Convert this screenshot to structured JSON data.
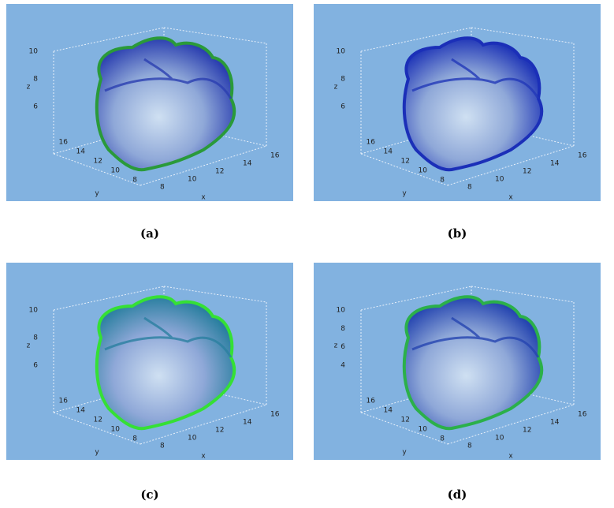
{
  "panels": [
    {
      "caption": "(a)",
      "z_ticks": [
        "6",
        "8",
        "10"
      ],
      "y_ticks": [
        "16",
        "14",
        "12",
        "10",
        "8"
      ],
      "x_ticks": [
        "8",
        "10",
        "12",
        "14",
        "16"
      ],
      "axis_labels": {
        "x": "x",
        "y": "y",
        "z": "z"
      }
    },
    {
      "caption": "(b)",
      "z_ticks": [
        "6",
        "8",
        "10"
      ],
      "y_ticks": [
        "16",
        "14",
        "12",
        "10",
        "8"
      ],
      "x_ticks": [
        "8",
        "10",
        "12",
        "14",
        "16"
      ],
      "axis_labels": {
        "x": "x",
        "y": "y",
        "z": "z"
      }
    },
    {
      "caption": "(c)",
      "z_ticks": [
        "6",
        "8",
        "10"
      ],
      "y_ticks": [
        "16",
        "14",
        "12",
        "10",
        "8"
      ],
      "x_ticks": [
        "8",
        "10",
        "12",
        "14",
        "16"
      ],
      "axis_labels": {
        "x": "x",
        "y": "y",
        "z": "z"
      }
    },
    {
      "caption": "(d)",
      "z_ticks": [
        "4",
        "6",
        "8",
        "10"
      ],
      "y_ticks": [
        "16",
        "14",
        "12",
        "10",
        "8"
      ],
      "x_ticks": [
        "8",
        "10",
        "12",
        "14",
        "16"
      ],
      "axis_labels": {
        "x": "x",
        "y": "y",
        "z": "z"
      }
    }
  ]
}
